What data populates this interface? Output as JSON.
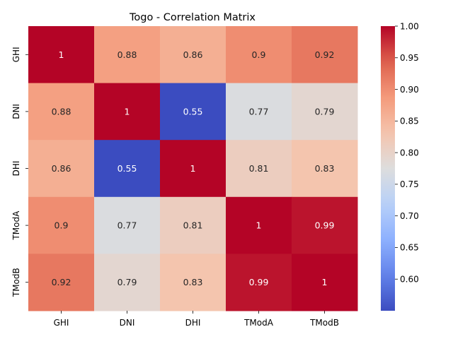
{
  "chart_data": {
    "type": "heatmap",
    "title": "Togo - Correlation Matrix",
    "xlabel": "",
    "ylabel": "",
    "x_categories": [
      "GHI",
      "DNI",
      "DHI",
      "TModA",
      "TModB"
    ],
    "y_categories": [
      "GHI",
      "DNI",
      "DHI",
      "TModA",
      "TModB"
    ],
    "values": [
      [
        1,
        0.88,
        0.86,
        0.9,
        0.92
      ],
      [
        0.88,
        1,
        0.55,
        0.77,
        0.79
      ],
      [
        0.86,
        0.55,
        1,
        0.81,
        0.83
      ],
      [
        0.9,
        0.77,
        0.81,
        1,
        0.99
      ],
      [
        0.92,
        0.79,
        0.83,
        0.99,
        1
      ]
    ],
    "annotations": true,
    "colormap": "coolwarm",
    "colorbar": {
      "range": [
        0.55,
        1.0
      ],
      "ticks": [
        0.6,
        0.65,
        0.7,
        0.75,
        0.8,
        0.85,
        0.9,
        0.95,
        1.0
      ],
      "tick_labels": [
        "0.60",
        "0.65",
        "0.70",
        "0.75",
        "0.80",
        "0.85",
        "0.90",
        "0.95",
        "1.00"
      ]
    },
    "grid": false
  }
}
